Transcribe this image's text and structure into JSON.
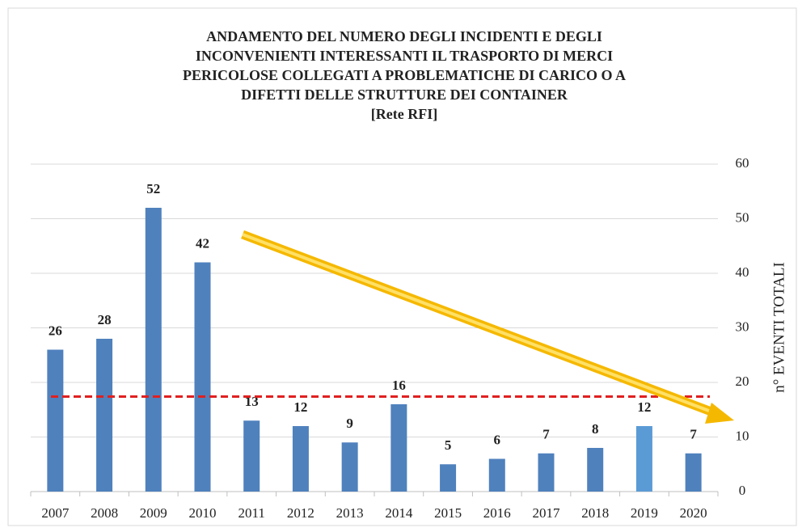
{
  "chart_data": {
    "type": "bar",
    "title": [
      "ANDAMENTO DEL NUMERO DEGLI INCIDENTI E DEGLI",
      "INCONVENIENTI INTERESSANTI IL TRASPORTO DI MERCI",
      "PERICOLOSE COLLEGATI A PROBLEMATICHE DI CARICO O A",
      "DIFETTI DELLE STRUTTURE DEI CONTAINER"
    ],
    "subtitle": "[Rete RFI]",
    "y_axis_label": "n° EVENTI TOTALI",
    "categories": [
      "2007",
      "2008",
      "2009",
      "2010",
      "2011",
      "2012",
      "2013",
      "2014",
      "2015",
      "2016",
      "2017",
      "2018",
      "2019",
      "2020"
    ],
    "values": [
      26,
      28,
      52,
      42,
      13,
      12,
      9,
      16,
      5,
      6,
      7,
      8,
      12,
      7
    ],
    "colors": [
      "#4f81bd",
      "#4f81bd",
      "#4f81bd",
      "#4f81bd",
      "#4f81bd",
      "#4f81bd",
      "#4f81bd",
      "#4f81bd",
      "#4f81bd",
      "#4f81bd",
      "#4f81bd",
      "#4f81bd",
      "#5b9bd5",
      "#4f81bd"
    ],
    "reference_line": {
      "value": 17.4,
      "color": "#e02020"
    },
    "ylim": [
      0,
      60
    ],
    "yticks": [
      0,
      10,
      20,
      30,
      40,
      50,
      60
    ],
    "y_axis_side": "right",
    "grid": true
  }
}
